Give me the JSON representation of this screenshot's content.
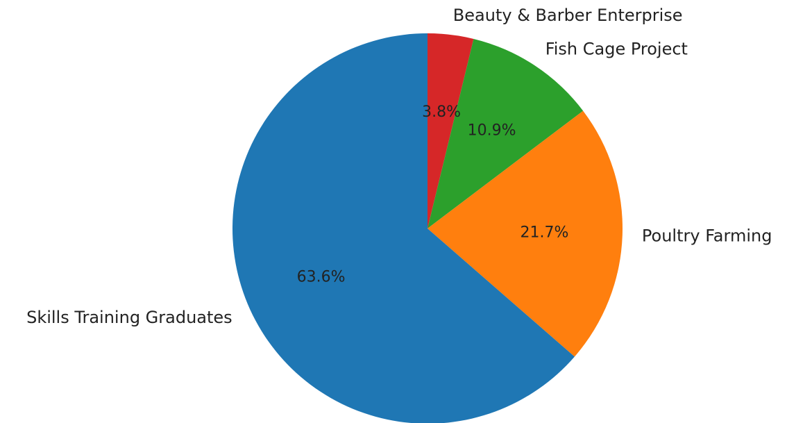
{
  "chart_data": {
    "type": "pie",
    "title": "",
    "start_angle_deg": 90,
    "direction": "clockwise",
    "slices": [
      {
        "label": "Beauty & Barber Enterprise",
        "value": 3.8,
        "value_label": "3.8%",
        "color": "#d62728"
      },
      {
        "label": "Fish Cage Project",
        "value": 10.9,
        "value_label": "10.9%",
        "color": "#2ca02c"
      },
      {
        "label": "Poultry Farming",
        "value": 21.7,
        "value_label": "21.7%",
        "color": "#ff7f0e"
      },
      {
        "label": "Skills Training Graduates",
        "value": 63.6,
        "value_label": "63.6%",
        "color": "#1f77b4"
      }
    ]
  }
}
